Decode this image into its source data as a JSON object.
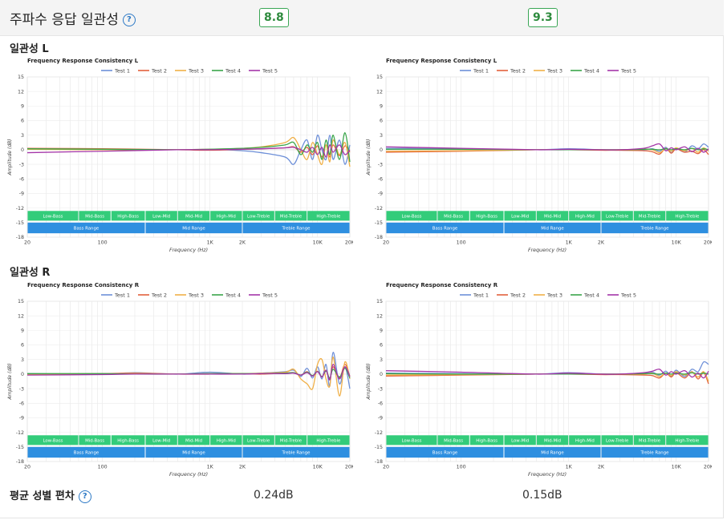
{
  "header": {
    "title": "주파수 응답 일관성",
    "scores": [
      "8.8",
      "9.3"
    ]
  },
  "sections": [
    {
      "label": "일관성 L"
    },
    {
      "label": "일관성 R"
    }
  ],
  "footer": {
    "label": "평균 성별 편차",
    "values": [
      "0.24dB",
      "0.15dB"
    ]
  },
  "chart_data": [
    {
      "type": "line",
      "title": "Frequency Response Consistency L",
      "xlabel": "Frequency (Hz)",
      "ylabel": "Amplitude (dB)",
      "x_scale": "log",
      "xlim": [
        20,
        20000
      ],
      "ylim": [
        -18,
        15
      ],
      "x_ticks": [
        "20",
        "100",
        "1K",
        "2K",
        "10K",
        "20K"
      ],
      "y_ticks": [
        15,
        12,
        9,
        6,
        3,
        0,
        -3,
        -6,
        -9,
        -12,
        -15,
        -18
      ],
      "bands_top": [
        "Low-Bass",
        "Mid-Bass",
        "High-Bass",
        "Low-Mid",
        "Mid-Mid",
        "High-Mid",
        "Low-Treble",
        "Mid-Treble",
        "High-Treble"
      ],
      "bands_bottom": [
        "Bass Range",
        "Mid Range",
        "Treble Range"
      ],
      "series": [
        {
          "name": "Test 1",
          "color": "#6d8fd8",
          "x": [
            20,
            100,
            500,
            1000,
            2000,
            3000,
            5000,
            6000,
            7000,
            8000,
            9000,
            10000,
            11000,
            12000,
            13000,
            14000,
            16000,
            18000,
            20000
          ],
          "y": [
            0.2,
            0.1,
            0,
            0.1,
            -0.2,
            -0.6,
            -1.5,
            -3,
            0,
            2,
            -2,
            3,
            0,
            -2,
            3,
            -2,
            2,
            -3,
            1
          ]
        },
        {
          "name": "Test 2",
          "color": "#e2613c",
          "x": [
            20,
            100,
            500,
            1000,
            2000,
            3000,
            5000,
            6000,
            7000,
            8000,
            9000,
            10000,
            11000,
            12000,
            13000,
            14000,
            16000,
            18000,
            20000
          ],
          "y": [
            0.3,
            0.2,
            0,
            -0.1,
            0.1,
            0.2,
            0.4,
            0.6,
            -0.5,
            0.5,
            -1,
            0.8,
            -1.5,
            1,
            -1.5,
            1,
            -1.2,
            0.8,
            -0.5
          ]
        },
        {
          "name": "Test 3",
          "color": "#f0b048",
          "x": [
            20,
            100,
            500,
            1000,
            2000,
            3000,
            5000,
            6000,
            7000,
            8000,
            9000,
            10000,
            11000,
            12000,
            13000,
            14000,
            16000,
            18000,
            20000
          ],
          "y": [
            0.1,
            0,
            0,
            0.1,
            0.3,
            0.6,
            1.5,
            2.5,
            0,
            -2,
            1.5,
            -1,
            -3,
            1,
            -2.5,
            2,
            -1,
            1.5,
            -3.5
          ]
        },
        {
          "name": "Test 4",
          "color": "#3aa54a",
          "x": [
            20,
            100,
            500,
            1000,
            2000,
            3000,
            5000,
            6000,
            7000,
            8000,
            9000,
            10000,
            11000,
            12000,
            13000,
            14000,
            16000,
            18000,
            20000
          ],
          "y": [
            0.2,
            0.1,
            0,
            0.1,
            0.3,
            0.5,
            1,
            1.5,
            -1,
            1,
            -0.5,
            1.5,
            -2,
            2,
            -1,
            3,
            -2,
            3.5,
            -2.5
          ]
        },
        {
          "name": "Test 5",
          "color": "#a435a8",
          "x": [
            20,
            100,
            500,
            1000,
            2000,
            3000,
            5000,
            6000,
            7000,
            8000,
            9000,
            10000,
            11000,
            12000,
            13000,
            14000,
            16000,
            18000,
            20000
          ],
          "y": [
            -0.6,
            -0.3,
            0,
            0,
            0.1,
            0.2,
            0.4,
            0.5,
            0,
            -0.5,
            0.5,
            -1,
            0.5,
            -1.5,
            1,
            -0.5,
            1,
            -1,
            0
          ]
        }
      ]
    },
    {
      "type": "line",
      "title": "Frequency Response Consistency L",
      "xlabel": "Frequency (Hz)",
      "ylabel": "Amplitude (dB)",
      "x_scale": "log",
      "xlim": [
        20,
        20000
      ],
      "ylim": [
        -18,
        15
      ],
      "x_ticks": [
        "20",
        "100",
        "1K",
        "2K",
        "10K",
        "20K"
      ],
      "y_ticks": [
        15,
        12,
        9,
        6,
        3,
        0,
        -3,
        -6,
        -9,
        -12,
        -15,
        -18
      ],
      "bands_top": [
        "Low-Bass",
        "Mid-Bass",
        "High-Bass",
        "Low-Mid",
        "Mid-Mid",
        "High-Mid",
        "Low-Treble",
        "Mid-Treble",
        "High-Treble"
      ],
      "bands_bottom": [
        "Bass Range",
        "Mid Range",
        "Treble Range"
      ],
      "series": [
        {
          "name": "Test 1",
          "color": "#6d8fd8",
          "x": [
            20,
            100,
            500,
            1000,
            2000,
            3000,
            5000,
            6000,
            7000,
            8000,
            9000,
            10000,
            12000,
            14000,
            16000,
            18000,
            20000
          ],
          "y": [
            0.3,
            0.2,
            0,
            0.2,
            0,
            -0.1,
            0,
            0.2,
            -0.3,
            0.5,
            -0.6,
            0.3,
            -0.5,
            0.8,
            0.2,
            1.2,
            0.5
          ]
        },
        {
          "name": "Test 2",
          "color": "#e2613c",
          "x": [
            20,
            100,
            500,
            1000,
            2000,
            3000,
            5000,
            6000,
            7000,
            8000,
            9000,
            10000,
            12000,
            14000,
            16000,
            18000,
            20000
          ],
          "y": [
            -0.5,
            -0.3,
            0,
            0,
            -0.1,
            -0.1,
            -0.2,
            -0.4,
            -0.9,
            0.3,
            -0.7,
            0.2,
            -0.5,
            -0.3,
            -0.8,
            0,
            -1
          ]
        },
        {
          "name": "Test 3",
          "color": "#f0b048",
          "x": [
            20,
            100,
            500,
            1000,
            2000,
            3000,
            5000,
            6000,
            7000,
            8000,
            9000,
            10000,
            12000,
            14000,
            16000,
            18000,
            20000
          ],
          "y": [
            -0.3,
            -0.2,
            0,
            0,
            0,
            0,
            0.1,
            0,
            -0.6,
            0.2,
            -0.3,
            0.4,
            -0.2,
            0.3,
            -0.5,
            0.4,
            -0.3
          ]
        },
        {
          "name": "Test 4",
          "color": "#3aa54a",
          "x": [
            20,
            100,
            500,
            1000,
            2000,
            3000,
            5000,
            6000,
            7000,
            8000,
            9000,
            10000,
            12000,
            14000,
            16000,
            18000,
            20000
          ],
          "y": [
            0.1,
            0.1,
            0,
            0,
            0,
            0,
            0.1,
            0.1,
            0,
            0.2,
            0,
            0.2,
            0,
            0.3,
            0,
            0.2,
            0
          ]
        },
        {
          "name": "Test 5",
          "color": "#a435a8",
          "x": [
            20,
            100,
            500,
            1000,
            2000,
            3000,
            5000,
            6000,
            7000,
            8000,
            9000,
            10000,
            12000,
            14000,
            16000,
            18000,
            20000
          ],
          "y": [
            0.6,
            0.3,
            0,
            0.1,
            0,
            0,
            0.3,
            0.8,
            1.2,
            -0.2,
            0.4,
            0,
            0.6,
            -0.4,
            0.3,
            -0.5,
            0.2
          ]
        }
      ]
    },
    {
      "type": "line",
      "title": "Frequency Response Consistency R",
      "xlabel": "Frequency (Hz)",
      "ylabel": "Amplitude (dB)",
      "x_scale": "log",
      "xlim": [
        20,
        20000
      ],
      "ylim": [
        -18,
        15
      ],
      "x_ticks": [
        "20",
        "100",
        "1K",
        "2K",
        "10K",
        "20K"
      ],
      "y_ticks": [
        15,
        12,
        9,
        6,
        3,
        0,
        -3,
        -6,
        -9,
        -12,
        -15,
        -18
      ],
      "bands_top": [
        "Low-Bass",
        "Mid-Bass",
        "High-Bass",
        "Low-Mid",
        "Mid-Mid",
        "High-Mid",
        "Low-Treble",
        "Mid-Treble",
        "High-Treble"
      ],
      "bands_bottom": [
        "Bass Range",
        "Mid Range",
        "Treble Range"
      ],
      "series": [
        {
          "name": "Test 1",
          "color": "#6d8fd8",
          "x": [
            20,
            100,
            200,
            500,
            1000,
            2000,
            3000,
            5000,
            6000,
            7000,
            8000,
            9000,
            10000,
            11000,
            12000,
            13000,
            14000,
            16000,
            18000,
            20000
          ],
          "y": [
            0.1,
            0,
            0.3,
            0,
            0.4,
            0,
            0.2,
            0.5,
            0.8,
            -0.5,
            1.2,
            -0.8,
            1.5,
            -1,
            2,
            -2.5,
            4.5,
            -2,
            1.5,
            -3
          ]
        },
        {
          "name": "Test 2",
          "color": "#e2613c",
          "x": [
            20,
            100,
            200,
            500,
            1000,
            2000,
            3000,
            5000,
            6000,
            7000,
            8000,
            9000,
            10000,
            11000,
            12000,
            13000,
            14000,
            16000,
            18000,
            20000
          ],
          "y": [
            0,
            0.1,
            0.2,
            0,
            0,
            0.1,
            0,
            0.2,
            0.3,
            -0.2,
            0.5,
            -0.4,
            0.6,
            -0.6,
            0.8,
            -1,
            1.5,
            -0.8,
            2,
            -0.5
          ]
        },
        {
          "name": "Test 3",
          "color": "#f0b048",
          "x": [
            20,
            100,
            200,
            500,
            1000,
            2000,
            3000,
            5000,
            6000,
            7000,
            8000,
            9000,
            10000,
            11000,
            12000,
            13000,
            14000,
            16000,
            18000,
            20000
          ],
          "y": [
            0,
            0,
            0.1,
            0,
            0.1,
            0.1,
            0.2,
            0.4,
            1,
            -1,
            -2,
            -3,
            2,
            3,
            -1,
            -2.5,
            3.5,
            -4.5,
            2.5,
            -1
          ]
        },
        {
          "name": "Test 4",
          "color": "#3aa54a",
          "x": [
            20,
            100,
            200,
            500,
            1000,
            2000,
            3000,
            5000,
            6000,
            7000,
            8000,
            9000,
            10000,
            11000,
            12000,
            13000,
            14000,
            16000,
            18000,
            20000
          ],
          "y": [
            0.1,
            0.1,
            0,
            0,
            0.1,
            0.1,
            0.1,
            0.2,
            0.3,
            -0.2,
            0.4,
            -0.3,
            0.5,
            -0.5,
            0.6,
            -0.8,
            1,
            -0.6,
            1.2,
            -0.8
          ]
        },
        {
          "name": "Test 5",
          "color": "#a435a8",
          "x": [
            20,
            100,
            200,
            500,
            1000,
            2000,
            3000,
            5000,
            6000,
            7000,
            8000,
            9000,
            10000,
            11000,
            12000,
            13000,
            14000,
            16000,
            18000,
            20000
          ],
          "y": [
            -0.2,
            -0.1,
            0,
            0,
            0,
            0,
            0.1,
            0.1,
            0.2,
            -0.2,
            0.3,
            -0.4,
            0.5,
            -0.6,
            0.8,
            -1.2,
            2,
            -1,
            1.5,
            -0.5
          ]
        }
      ]
    },
    {
      "type": "line",
      "title": "Frequency Response Consistency R",
      "xlabel": "Frequency (Hz)",
      "ylabel": "Amplitude (dB)",
      "x_scale": "log",
      "xlim": [
        20,
        20000
      ],
      "ylim": [
        -18,
        15
      ],
      "x_ticks": [
        "20",
        "100",
        "1K",
        "2K",
        "10K",
        "20K"
      ],
      "y_ticks": [
        15,
        12,
        9,
        6,
        3,
        0,
        -3,
        -6,
        -9,
        -12,
        -15,
        -18
      ],
      "bands_top": [
        "Low-Bass",
        "Mid-Bass",
        "High-Bass",
        "Low-Mid",
        "Mid-Mid",
        "High-Mid",
        "Low-Treble",
        "Mid-Treble",
        "High-Treble"
      ],
      "bands_bottom": [
        "Bass Range",
        "Mid Range",
        "Treble Range"
      ],
      "series": [
        {
          "name": "Test 1",
          "color": "#6d8fd8",
          "x": [
            20,
            100,
            500,
            1000,
            2000,
            3000,
            5000,
            6000,
            7000,
            8000,
            9000,
            10000,
            12000,
            14000,
            16000,
            18000,
            20000
          ],
          "y": [
            0.2,
            0.1,
            0,
            0.3,
            0,
            0,
            0.2,
            0.4,
            -0.2,
            0.6,
            -0.4,
            0.8,
            -0.5,
            1,
            0.5,
            2.5,
            2
          ]
        },
        {
          "name": "Test 2",
          "color": "#e2613c",
          "x": [
            20,
            100,
            500,
            1000,
            2000,
            3000,
            5000,
            6000,
            7000,
            8000,
            9000,
            10000,
            12000,
            14000,
            16000,
            18000,
            20000
          ],
          "y": [
            -0.4,
            -0.2,
            0,
            0,
            -0.1,
            -0.1,
            -0.2,
            -0.3,
            -0.8,
            0.2,
            -0.6,
            0.3,
            -0.8,
            0.5,
            -1,
            0.3,
            -2
          ]
        },
        {
          "name": "Test 3",
          "color": "#f0b048",
          "x": [
            20,
            100,
            500,
            1000,
            2000,
            3000,
            5000,
            6000,
            7000,
            8000,
            9000,
            10000,
            12000,
            14000,
            16000,
            18000,
            20000
          ],
          "y": [
            -0.2,
            -0.1,
            0,
            0,
            0,
            0,
            0,
            0.2,
            -0.5,
            0.2,
            -0.3,
            0.5,
            -0.2,
            0.4,
            -0.6,
            0.5,
            -1.5
          ]
        },
        {
          "name": "Test 4",
          "color": "#3aa54a",
          "x": [
            20,
            100,
            500,
            1000,
            2000,
            3000,
            5000,
            6000,
            7000,
            8000,
            9000,
            10000,
            12000,
            14000,
            16000,
            18000,
            20000
          ],
          "y": [
            0.1,
            0,
            0,
            0,
            0,
            0,
            0.1,
            0.1,
            0,
            0.2,
            0,
            0.2,
            0,
            0.3,
            0,
            0.2,
            0
          ]
        },
        {
          "name": "Test 5",
          "color": "#a435a8",
          "x": [
            20,
            100,
            500,
            1000,
            2000,
            3000,
            5000,
            6000,
            7000,
            8000,
            9000,
            10000,
            12000,
            14000,
            16000,
            18000,
            20000
          ],
          "y": [
            0.7,
            0.4,
            0,
            0.2,
            0,
            0,
            0.3,
            0.6,
            1,
            -0.2,
            0.5,
            0,
            0.7,
            -0.6,
            0.2,
            -0.8,
            0.6
          ]
        }
      ]
    }
  ]
}
